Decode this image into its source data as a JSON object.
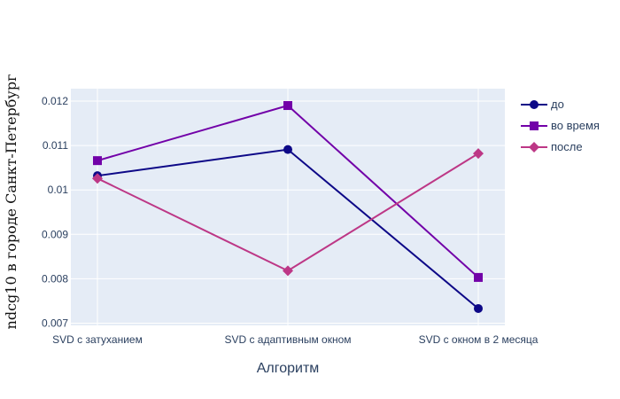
{
  "chart_data": {
    "type": "line",
    "title": "",
    "xlabel": "Алгоритм",
    "ylabel": "ndcg10 в городе Санкт-Петербург",
    "categories": [
      "SVD с затуханием",
      "SVD с адаптивным окном",
      "SVD с окном в 2 месяца"
    ],
    "ylim": [
      0.00695,
      0.01228
    ],
    "yticks": [
      0.007,
      0.008,
      0.009,
      0.01,
      0.011,
      0.012
    ],
    "ytick_labels": [
      "0.007",
      "0.008",
      "0.009",
      "0.01",
      "0.011",
      "0.012"
    ],
    "grid": true,
    "legend_position": "top-right",
    "background": "#e5ecf6",
    "series": [
      {
        "name": "до",
        "color": "#0d0887",
        "marker": "circle",
        "values": [
          0.01032,
          0.01091,
          0.00733
        ]
      },
      {
        "name": "во время",
        "color": "#7201a8",
        "marker": "square",
        "values": [
          0.01066,
          0.0119,
          0.00803
        ]
      },
      {
        "name": "после",
        "color": "#bd3786",
        "marker": "diamond",
        "values": [
          0.01026,
          0.00818,
          0.01082
        ]
      }
    ]
  }
}
